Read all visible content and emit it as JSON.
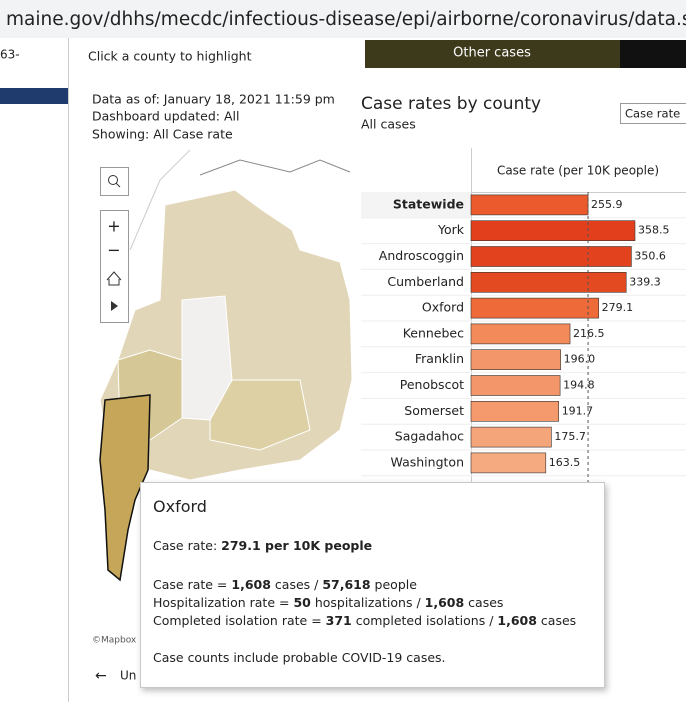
{
  "browser": {
    "url": "maine.gov/dhhs/mecdc/infectious-disease/epi/airborne/coronavirus/data.shtml"
  },
  "sidebar": {
    "fragment": "63-"
  },
  "dashboard": {
    "hint": "Click a county to highlight",
    "tabs": [
      "Other cases"
    ],
    "info": [
      "Data as of: January 18, 2021 11:59 pm",
      "Dashboard updated: All",
      "Showing: All Case rate"
    ],
    "dropdown": "Case rate",
    "attribution": "©Mapbox",
    "back": "Un"
  },
  "chart_data": {
    "type": "bar",
    "title": "Case rates by county",
    "subtitle": "All cases",
    "axis_label": "Case rate (per 10K people)",
    "categories": [
      "Statewide",
      "York",
      "Androscoggin",
      "Cumberland",
      "Oxford",
      "Kennebec",
      "Franklin",
      "Penobscot",
      "Somerset",
      "Sagadahoc",
      "Washington"
    ],
    "values": [
      255.9,
      358.5,
      350.6,
      339.3,
      279.1,
      216.5,
      196.0,
      194.8,
      191.7,
      175.7,
      163.5
    ],
    "value_labels": [
      "255.9",
      "358.5",
      "350.6",
      "339.3",
      "279.1",
      "216.5",
      "196.0",
      "194.8",
      "191.7",
      "175.7",
      "163.5"
    ],
    "colors": [
      "#ea5a2c",
      "#e2401c",
      "#e2431e",
      "#e44a22",
      "#ee6a38",
      "#f28a5a",
      "#f39669",
      "#f3976a",
      "#f49a6c",
      "#f5a57a",
      "#f6aa80"
    ],
    "xlim": [
      0,
      470
    ],
    "reference_line": true
  },
  "tooltip": {
    "title": "Oxford",
    "case_rate": {
      "label": "Case rate: ",
      "value": "279.1 per 10K people"
    },
    "lines": [
      [
        "Case rate = ",
        "1,608",
        " cases / ",
        "57,618",
        " people"
      ],
      [
        "Hospitalization rate = ",
        "50",
        " hospitalizations / ",
        "1,608",
        " cases"
      ],
      [
        "Completed isolation rate = ",
        "371",
        " completed isolations / ",
        "1,608",
        " cases"
      ]
    ],
    "note": "Case counts include probable COVID-19 cases."
  }
}
